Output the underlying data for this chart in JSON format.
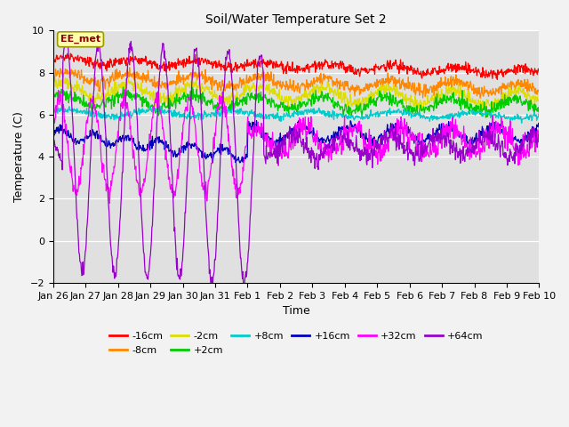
{
  "title": "Soil/Water Temperature Set 2",
  "xlabel": "Time",
  "ylabel": "Temperature (C)",
  "annotation_text": "EE_met",
  "annotation_color": "#8B0000",
  "annotation_bg": "#FFFFAA",
  "annotation_border": "#999900",
  "ylim": [
    -2,
    10
  ],
  "yticks": [
    -2,
    0,
    2,
    4,
    6,
    8,
    10
  ],
  "bg_color": "#E0E0E0",
  "series": [
    {
      "label": "-16cm",
      "color": "#FF0000"
    },
    {
      "label": "-8cm",
      "color": "#FF8800"
    },
    {
      "label": "-2cm",
      "color": "#DDDD00"
    },
    {
      "label": "+2cm",
      "color": "#00CC00"
    },
    {
      "label": "+8cm",
      "color": "#00CCCC"
    },
    {
      "label": "+16cm",
      "color": "#0000BB"
    },
    {
      "label": "+32cm",
      "color": "#FF00FF"
    },
    {
      "label": "+64cm",
      "color": "#9900CC"
    }
  ],
  "xtick_labels": [
    "Jan 26",
    "Jan 27",
    "Jan 28",
    "Jan 29",
    "Jan 30",
    "Jan 31",
    "Feb 1",
    "Feb 2",
    "Feb 3",
    "Feb 4",
    "Feb 5",
    "Feb 6",
    "Feb 7",
    "Feb 8",
    "Feb 9",
    "Feb 10"
  ],
  "n_points": 1000,
  "days": 15
}
